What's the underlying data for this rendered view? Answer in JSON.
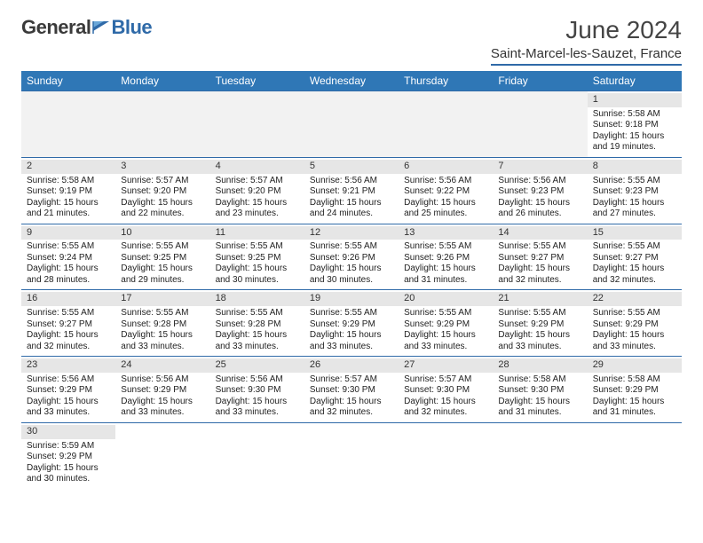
{
  "brand": {
    "word1": "General",
    "word2": "Blue"
  },
  "header": {
    "title": "June 2024",
    "location": "Saint-Marcel-les-Sauzet, France"
  },
  "columns": [
    "Sunday",
    "Monday",
    "Tuesday",
    "Wednesday",
    "Thursday",
    "Friday",
    "Saturday"
  ],
  "colors": {
    "header_bg": "#2f77b6",
    "rule": "#2f6aa8",
    "daybar": "#e6e6e6"
  },
  "weeks": [
    [
      null,
      null,
      null,
      null,
      null,
      null,
      {
        "n": "1",
        "sr": "Sunrise: 5:58 AM",
        "ss": "Sunset: 9:18 PM",
        "dl1": "Daylight: 15 hours",
        "dl2": "and 19 minutes."
      }
    ],
    [
      {
        "n": "2",
        "sr": "Sunrise: 5:58 AM",
        "ss": "Sunset: 9:19 PM",
        "dl1": "Daylight: 15 hours",
        "dl2": "and 21 minutes."
      },
      {
        "n": "3",
        "sr": "Sunrise: 5:57 AM",
        "ss": "Sunset: 9:20 PM",
        "dl1": "Daylight: 15 hours",
        "dl2": "and 22 minutes."
      },
      {
        "n": "4",
        "sr": "Sunrise: 5:57 AM",
        "ss": "Sunset: 9:20 PM",
        "dl1": "Daylight: 15 hours",
        "dl2": "and 23 minutes."
      },
      {
        "n": "5",
        "sr": "Sunrise: 5:56 AM",
        "ss": "Sunset: 9:21 PM",
        "dl1": "Daylight: 15 hours",
        "dl2": "and 24 minutes."
      },
      {
        "n": "6",
        "sr": "Sunrise: 5:56 AM",
        "ss": "Sunset: 9:22 PM",
        "dl1": "Daylight: 15 hours",
        "dl2": "and 25 minutes."
      },
      {
        "n": "7",
        "sr": "Sunrise: 5:56 AM",
        "ss": "Sunset: 9:23 PM",
        "dl1": "Daylight: 15 hours",
        "dl2": "and 26 minutes."
      },
      {
        "n": "8",
        "sr": "Sunrise: 5:55 AM",
        "ss": "Sunset: 9:23 PM",
        "dl1": "Daylight: 15 hours",
        "dl2": "and 27 minutes."
      }
    ],
    [
      {
        "n": "9",
        "sr": "Sunrise: 5:55 AM",
        "ss": "Sunset: 9:24 PM",
        "dl1": "Daylight: 15 hours",
        "dl2": "and 28 minutes."
      },
      {
        "n": "10",
        "sr": "Sunrise: 5:55 AM",
        "ss": "Sunset: 9:25 PM",
        "dl1": "Daylight: 15 hours",
        "dl2": "and 29 minutes."
      },
      {
        "n": "11",
        "sr": "Sunrise: 5:55 AM",
        "ss": "Sunset: 9:25 PM",
        "dl1": "Daylight: 15 hours",
        "dl2": "and 30 minutes."
      },
      {
        "n": "12",
        "sr": "Sunrise: 5:55 AM",
        "ss": "Sunset: 9:26 PM",
        "dl1": "Daylight: 15 hours",
        "dl2": "and 30 minutes."
      },
      {
        "n": "13",
        "sr": "Sunrise: 5:55 AM",
        "ss": "Sunset: 9:26 PM",
        "dl1": "Daylight: 15 hours",
        "dl2": "and 31 minutes."
      },
      {
        "n": "14",
        "sr": "Sunrise: 5:55 AM",
        "ss": "Sunset: 9:27 PM",
        "dl1": "Daylight: 15 hours",
        "dl2": "and 32 minutes."
      },
      {
        "n": "15",
        "sr": "Sunrise: 5:55 AM",
        "ss": "Sunset: 9:27 PM",
        "dl1": "Daylight: 15 hours",
        "dl2": "and 32 minutes."
      }
    ],
    [
      {
        "n": "16",
        "sr": "Sunrise: 5:55 AM",
        "ss": "Sunset: 9:27 PM",
        "dl1": "Daylight: 15 hours",
        "dl2": "and 32 minutes."
      },
      {
        "n": "17",
        "sr": "Sunrise: 5:55 AM",
        "ss": "Sunset: 9:28 PM",
        "dl1": "Daylight: 15 hours",
        "dl2": "and 33 minutes."
      },
      {
        "n": "18",
        "sr": "Sunrise: 5:55 AM",
        "ss": "Sunset: 9:28 PM",
        "dl1": "Daylight: 15 hours",
        "dl2": "and 33 minutes."
      },
      {
        "n": "19",
        "sr": "Sunrise: 5:55 AM",
        "ss": "Sunset: 9:29 PM",
        "dl1": "Daylight: 15 hours",
        "dl2": "and 33 minutes."
      },
      {
        "n": "20",
        "sr": "Sunrise: 5:55 AM",
        "ss": "Sunset: 9:29 PM",
        "dl1": "Daylight: 15 hours",
        "dl2": "and 33 minutes."
      },
      {
        "n": "21",
        "sr": "Sunrise: 5:55 AM",
        "ss": "Sunset: 9:29 PM",
        "dl1": "Daylight: 15 hours",
        "dl2": "and 33 minutes."
      },
      {
        "n": "22",
        "sr": "Sunrise: 5:55 AM",
        "ss": "Sunset: 9:29 PM",
        "dl1": "Daylight: 15 hours",
        "dl2": "and 33 minutes."
      }
    ],
    [
      {
        "n": "23",
        "sr": "Sunrise: 5:56 AM",
        "ss": "Sunset: 9:29 PM",
        "dl1": "Daylight: 15 hours",
        "dl2": "and 33 minutes."
      },
      {
        "n": "24",
        "sr": "Sunrise: 5:56 AM",
        "ss": "Sunset: 9:29 PM",
        "dl1": "Daylight: 15 hours",
        "dl2": "and 33 minutes."
      },
      {
        "n": "25",
        "sr": "Sunrise: 5:56 AM",
        "ss": "Sunset: 9:30 PM",
        "dl1": "Daylight: 15 hours",
        "dl2": "and 33 minutes."
      },
      {
        "n": "26",
        "sr": "Sunrise: 5:57 AM",
        "ss": "Sunset: 9:30 PM",
        "dl1": "Daylight: 15 hours",
        "dl2": "and 32 minutes."
      },
      {
        "n": "27",
        "sr": "Sunrise: 5:57 AM",
        "ss": "Sunset: 9:30 PM",
        "dl1": "Daylight: 15 hours",
        "dl2": "and 32 minutes."
      },
      {
        "n": "28",
        "sr": "Sunrise: 5:58 AM",
        "ss": "Sunset: 9:30 PM",
        "dl1": "Daylight: 15 hours",
        "dl2": "and 31 minutes."
      },
      {
        "n": "29",
        "sr": "Sunrise: 5:58 AM",
        "ss": "Sunset: 9:29 PM",
        "dl1": "Daylight: 15 hours",
        "dl2": "and 31 minutes."
      }
    ],
    [
      {
        "n": "30",
        "sr": "Sunrise: 5:59 AM",
        "ss": "Sunset: 9:29 PM",
        "dl1": "Daylight: 15 hours",
        "dl2": "and 30 minutes."
      },
      null,
      null,
      null,
      null,
      null,
      null
    ]
  ]
}
